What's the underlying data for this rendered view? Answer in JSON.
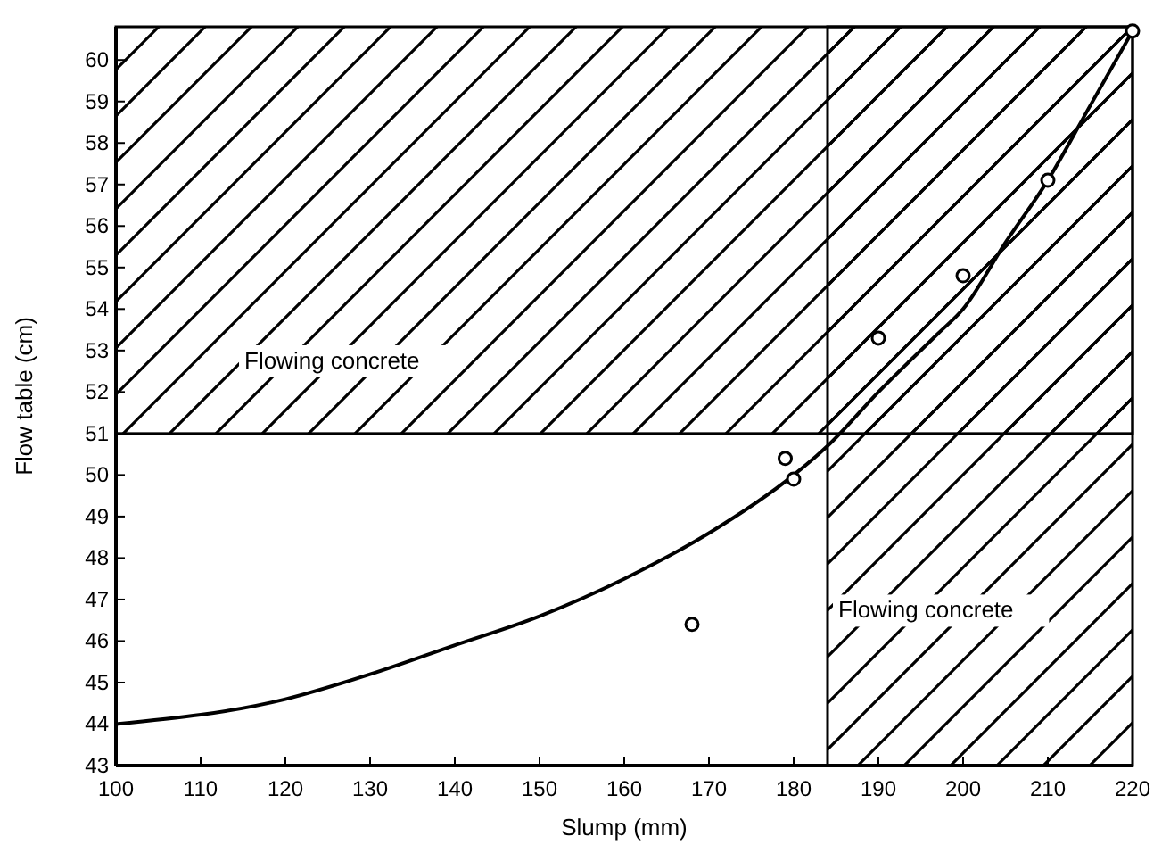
{
  "chart_data": {
    "type": "scatter",
    "xlabel": "Slump (mm)",
    "ylabel": "Flow table (cm)",
    "xlim": [
      100,
      220
    ],
    "ylim": [
      43,
      60.8
    ],
    "xticks": [
      100,
      110,
      120,
      130,
      140,
      150,
      160,
      170,
      180,
      190,
      200,
      210,
      220
    ],
    "yticks": [
      43,
      44,
      45,
      46,
      47,
      48,
      49,
      50,
      51,
      52,
      53,
      54,
      55,
      56,
      57,
      58,
      59,
      60
    ],
    "marker": "circle",
    "series": [
      {
        "color": "#000000",
        "x": [
          168,
          179,
          180,
          190,
          200,
          210,
          220
        ],
        "values": [
          46.4,
          50.4,
          49.9,
          53.3,
          54.8,
          57.1,
          60.7
        ]
      },
      {
        "type": "line",
        "color": "#000000",
        "marker": "none",
        "line_style": "solid",
        "x": [
          100,
          120,
          130,
          140,
          150,
          160,
          170,
          180,
          184,
          190,
          197,
          200,
          205,
          210,
          215,
          220
        ],
        "values": [
          44,
          44.6,
          45.2,
          45.9,
          46.6,
          47.5,
          48.6,
          50,
          50.7,
          52,
          53.4,
          54,
          55.6,
          57.1,
          58.9,
          60.7
        ]
      }
    ],
    "bands": [
      {
        "axis": "y",
        "from": 51,
        "to": 60.8,
        "label": "Flowing concrete",
        "color": "#000000"
      },
      {
        "axis": "x",
        "from": 184,
        "to": 220,
        "label": "Flowing concrete",
        "color": "#000000"
      }
    ]
  }
}
